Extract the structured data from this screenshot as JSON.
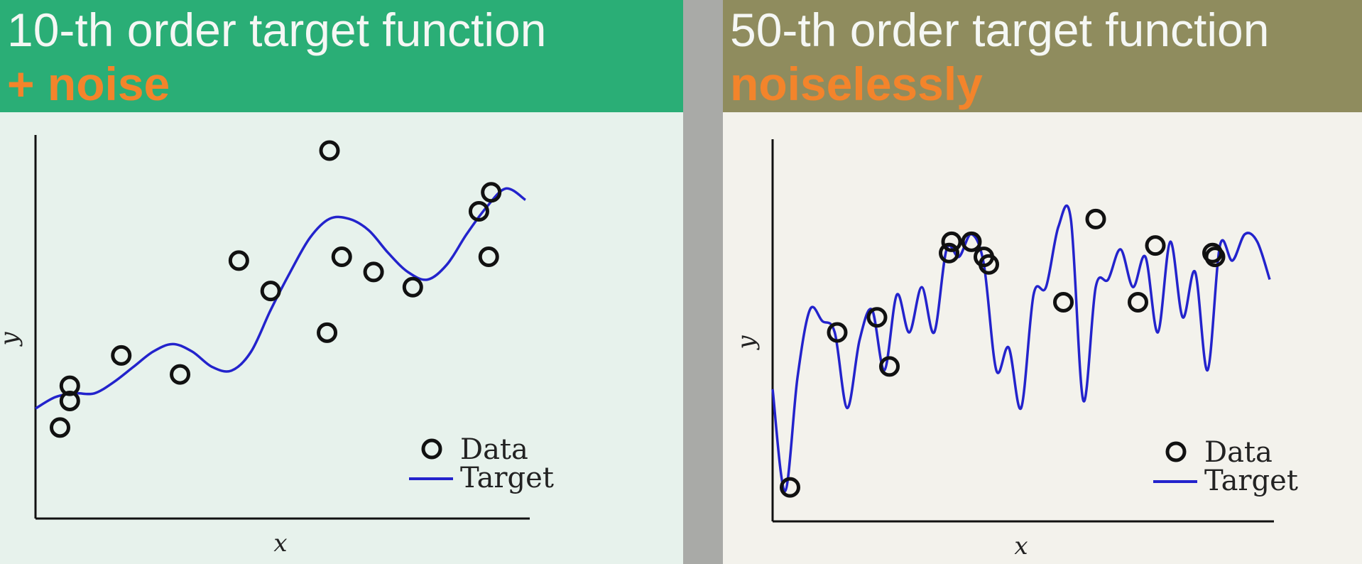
{
  "colors": {
    "left_header": "#2aae76",
    "left_plot_bg": "#e7f2ec",
    "right_header": "#8f8c5e",
    "right_plot_bg": "#f3f2ec",
    "accent_text": "#f3842b",
    "target_line": "#2323cc",
    "data_marker": "#111111"
  },
  "panels": {
    "left": {
      "title": "10-th order target function",
      "subtitle": "+ noise"
    },
    "right": {
      "title": "50-th order target function",
      "subtitle": "noiselessly"
    }
  },
  "chart_data": [
    {
      "type": "scatter",
      "xlabel": "x",
      "ylabel": "y",
      "xlim": [
        0,
        1
      ],
      "ylim": [
        0,
        1
      ],
      "legend": {
        "position": "bottom-right",
        "entries": [
          "Data",
          "Target"
        ]
      },
      "grid": false,
      "series": [
        {
          "name": "Data",
          "kind": "points",
          "x": [
            0.05,
            0.07,
            0.07,
            0.175,
            0.295,
            0.415,
            0.48,
            0.595,
            0.6,
            0.625,
            0.69,
            0.77,
            0.905,
            0.925,
            0.93
          ],
          "y": [
            0.24,
            0.35,
            0.31,
            0.43,
            0.38,
            0.68,
            0.6,
            0.49,
            0.97,
            0.69,
            0.65,
            0.61,
            0.81,
            0.69,
            0.86
          ]
        },
        {
          "name": "Target",
          "kind": "line",
          "x": [
            0.0,
            0.04,
            0.08,
            0.12,
            0.16,
            0.2,
            0.24,
            0.28,
            0.32,
            0.36,
            0.4,
            0.44,
            0.48,
            0.52,
            0.56,
            0.6,
            0.64,
            0.68,
            0.72,
            0.76,
            0.8,
            0.84,
            0.88,
            0.92,
            0.96,
            1.0
          ],
          "y": [
            0.29,
            0.32,
            0.33,
            0.33,
            0.36,
            0.4,
            0.44,
            0.46,
            0.44,
            0.4,
            0.39,
            0.44,
            0.55,
            0.65,
            0.74,
            0.79,
            0.79,
            0.76,
            0.7,
            0.65,
            0.63,
            0.67,
            0.75,
            0.82,
            0.87,
            0.84
          ]
        }
      ]
    },
    {
      "type": "scatter",
      "xlabel": "x",
      "ylabel": "y",
      "xlim": [
        0,
        1
      ],
      "ylim": [
        0,
        1
      ],
      "legend": {
        "position": "bottom-right",
        "entries": [
          "Data",
          "Target"
        ]
      },
      "grid": false,
      "series": [
        {
          "name": "Data",
          "kind": "points",
          "x": [
            0.035,
            0.13,
            0.21,
            0.235,
            0.355,
            0.36,
            0.4,
            0.425,
            0.435,
            0.585,
            0.65,
            0.735,
            0.77,
            0.885,
            0.89
          ],
          "y": [
            0.09,
            0.5,
            0.54,
            0.41,
            0.71,
            0.74,
            0.74,
            0.7,
            0.68,
            0.58,
            0.8,
            0.58,
            0.73,
            0.71,
            0.7
          ]
        },
        {
          "name": "Target",
          "kind": "line",
          "x": [
            0.0,
            0.025,
            0.05,
            0.075,
            0.1,
            0.125,
            0.15,
            0.175,
            0.2,
            0.225,
            0.25,
            0.275,
            0.3,
            0.325,
            0.35,
            0.375,
            0.4,
            0.425,
            0.45,
            0.475,
            0.5,
            0.525,
            0.55,
            0.575,
            0.6,
            0.625,
            0.65,
            0.675,
            0.7,
            0.725,
            0.75,
            0.775,
            0.8,
            0.825,
            0.85,
            0.875,
            0.9,
            0.925,
            0.95,
            0.975,
            1.0
          ],
          "y": [
            0.35,
            0.08,
            0.38,
            0.56,
            0.53,
            0.5,
            0.3,
            0.48,
            0.56,
            0.4,
            0.6,
            0.5,
            0.62,
            0.5,
            0.72,
            0.7,
            0.76,
            0.68,
            0.4,
            0.46,
            0.3,
            0.6,
            0.62,
            0.78,
            0.8,
            0.32,
            0.62,
            0.64,
            0.72,
            0.62,
            0.7,
            0.5,
            0.74,
            0.54,
            0.66,
            0.4,
            0.73,
            0.69,
            0.76,
            0.74,
            0.64
          ]
        }
      ]
    }
  ]
}
